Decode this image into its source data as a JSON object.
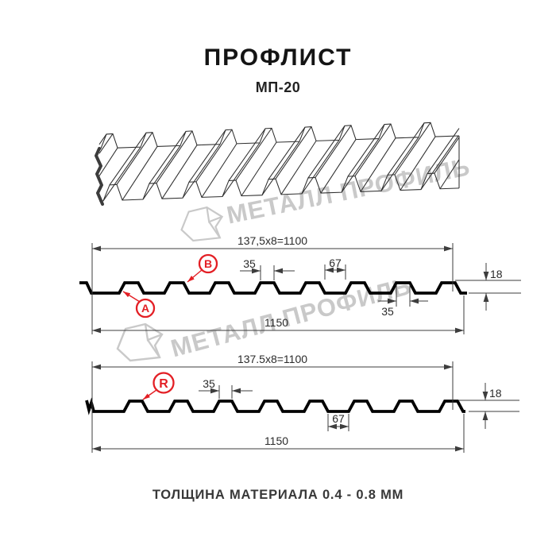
{
  "header": {
    "title": "ПРОФЛИСТ",
    "subtitle": "МП-20"
  },
  "watermark": {
    "text": "МЕТАЛЛ ПРОФИЛЬ"
  },
  "diagrams": {
    "top": {
      "module_dim": "137,5x8=1100",
      "overall_width": "1150",
      "crest_width": "35",
      "valley_width": "67",
      "height": "18",
      "crest_width_bottom": "35",
      "label_a": "A",
      "label_b": "B"
    },
    "bottom": {
      "module_dim": "137.5x8=1100",
      "overall_width": "1150",
      "crest_width": "35",
      "valley_width": "67",
      "height": "18",
      "label_r": "R"
    }
  },
  "footer": {
    "caption": "ТОЛЩИНА МАТЕРИАЛА 0.4 - 0.8 ММ"
  },
  "colors": {
    "accent_red": "#e31e24",
    "line": "#3d3d3d",
    "watermark": "#c9c9c9"
  }
}
